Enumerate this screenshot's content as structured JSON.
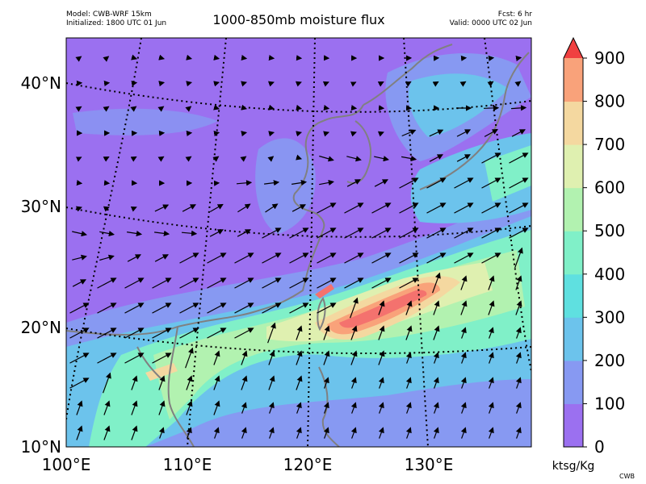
{
  "header": {
    "model_line": "Model: CWB-WRF 15km",
    "init_line": "Initialized: 1800 UTC 01 Jun",
    "title": "1000-850mb moisture flux",
    "fcst_line": "Fcst: 6 hr",
    "valid_line": "Valid: 0000 UTC 02 Jun"
  },
  "axes": {
    "lon_labels": [
      "100°E",
      "110°E",
      "120°E",
      "130°E"
    ],
    "lat_labels": [
      "40°N",
      "30°N",
      "20°N",
      "10°N"
    ]
  },
  "colorbar": {
    "unit": "ktsg/Kg",
    "ticks": [
      "900",
      "800",
      "700",
      "600",
      "500",
      "400",
      "300",
      "200",
      "100",
      "0"
    ],
    "levels": [
      0,
      100,
      200,
      300,
      400,
      500,
      600,
      700,
      800,
      900
    ],
    "colors": [
      "#9b70f0",
      "#8799f2",
      "#6cc3ec",
      "#5fe0e0",
      "#80f0c8",
      "#b2f2b0",
      "#dff0b0",
      "#f4d8a0",
      "#f9a27a",
      "#f4726e",
      "#f04040"
    ]
  },
  "credit": "CWB"
}
